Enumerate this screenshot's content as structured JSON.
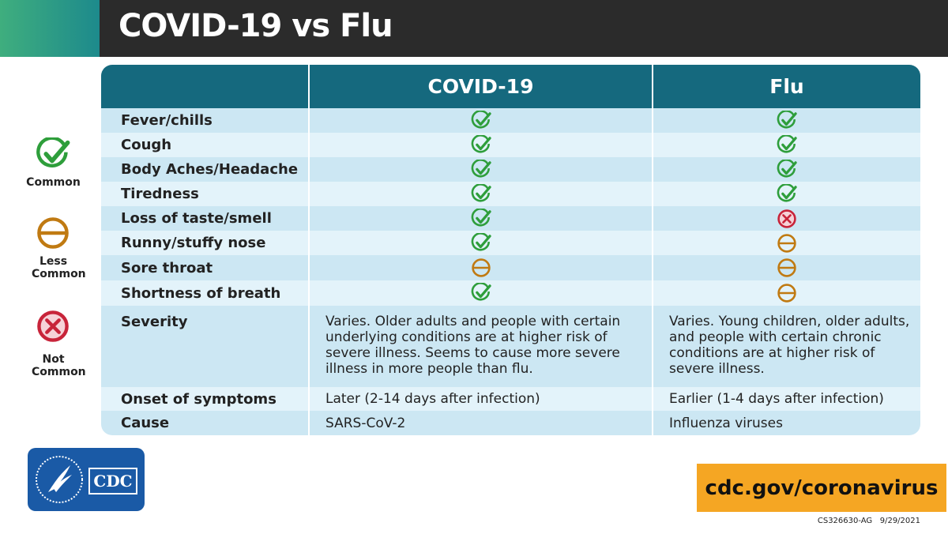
{
  "header": {
    "title": "COVID-19 vs Flu"
  },
  "legend": [
    {
      "label": "Common"
    },
    {
      "label": "Less Common"
    },
    {
      "label": "Not Common"
    }
  ],
  "table": {
    "columns": [
      "COVID-19",
      "Flu"
    ],
    "rows": [
      [
        "Fever/chills"
      ],
      [
        "Cough"
      ],
      [
        "Body Aches/Headache"
      ],
      [
        "Tiredness"
      ],
      [
        "Loss of taste/smell"
      ],
      [
        "Runny/stuffy nose"
      ],
      [
        "Sore throat"
      ],
      [
        "Shortness of breath"
      ],
      [
        "Severity",
        "Varies. Older adults and people with certain underlying conditions are at higher risk of severe illness. Seems to cause more severe illness in more people than flu.",
        "Varies. Young children, older adults, and people with certain chronic conditions are at higher risk of severe illness."
      ],
      [
        "Onset of symptoms",
        "Later (2-14 days after infection)",
        "Earlier (1-4 days after infection)"
      ],
      [
        "Cause",
        "SARS-CoV-2",
        "Influenza viruses"
      ]
    ]
  },
  "logo": {
    "text": "CDC"
  },
  "footer": {
    "url": "cdc.gov/coronavirus",
    "code": "CS326630-AG",
    "date": "9/29/2021"
  }
}
